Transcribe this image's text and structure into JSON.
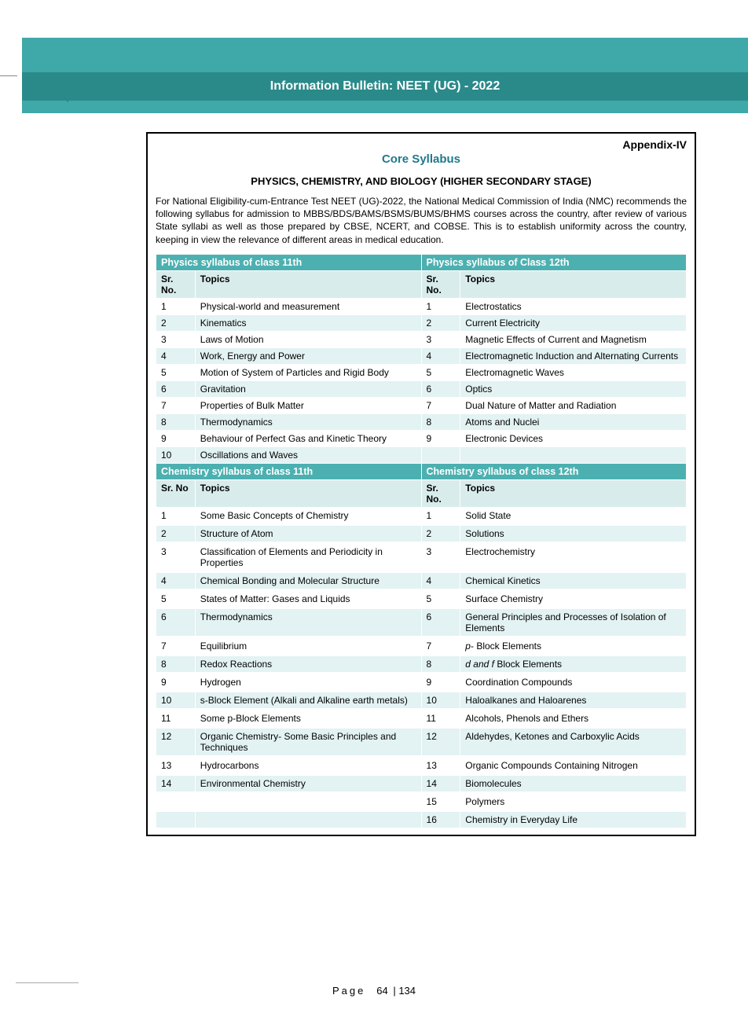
{
  "header": {
    "title": "Information Bulletin: NEET (UG) - 2022"
  },
  "appendix": "Appendix-IV",
  "core_title": "Core Syllabus",
  "subject_title": "PHYSICS, CHEMISTRY, AND BIOLOGY (HIGHER SECONDARY STAGE)",
  "intro": "For National Eligibility-cum-Entrance Test NEET (UG)-2022, the National Medical Commission of India (NMC) recommends the following syllabus for admission to MBBS/BDS/BAMS/BSMS/BUMS/BHMS courses across the country, after review of various State syllabi as well as those prepared by CBSE, NCERT, and COBSE. This is to establish uniformity across the country, keeping in view the relevance of different areas in medical education.",
  "physics": {
    "left_head": "Physics syllabus of class 11th",
    "right_head": "Physics syllabus of Class 12th",
    "cols": {
      "sr": "Sr. No.",
      "sr2": "Sr. No",
      "topics": "Topics"
    },
    "rows": [
      {
        "l": "Physical-world and measurement",
        "r": "Electrostatics"
      },
      {
        "l": "Kinematics",
        "r": "Current Electricity"
      },
      {
        "l": "Laws of Motion",
        "r": "Magnetic Effects of Current and Magnetism"
      },
      {
        "l": "Work, Energy and Power",
        "r": "Electromagnetic Induction and Alternating Currents"
      },
      {
        "l": "Motion of System of Particles and Rigid Body",
        "r": "Electromagnetic Waves"
      },
      {
        "l": "Gravitation",
        "r": "Optics"
      },
      {
        "l": "Properties of Bulk Matter",
        "r": "Dual Nature of Matter and Radiation"
      },
      {
        "l": "Thermodynamics",
        "r": "Atoms and Nuclei"
      },
      {
        "l": "Behaviour of Perfect Gas and Kinetic Theory",
        "r": "Electronic Devices"
      },
      {
        "l": "Oscillations and Waves",
        "r": ""
      }
    ]
  },
  "chemistry": {
    "left_head": "Chemistry syllabus of class 11th",
    "right_head": "Chemistry syllabus of class 12th",
    "rows": [
      {
        "l": "Some Basic Concepts of Chemistry",
        "r": "Solid State"
      },
      {
        "l": "Structure of Atom",
        "r": "Solutions"
      },
      {
        "l": "Classification of Elements and Periodicity in Properties",
        "r": "Electrochemistry"
      },
      {
        "l": "Chemical Bonding and Molecular Structure",
        "r": "Chemical Kinetics"
      },
      {
        "l": "States of Matter: Gases and Liquids",
        "r": "Surface Chemistry"
      },
      {
        "l": "Thermodynamics",
        "r": "General Principles and Processes of Isolation of Elements"
      },
      {
        "l": "Equilibrium",
        "r": "p- Block Elements",
        "r_ital": "p"
      },
      {
        "l": "Redox Reactions",
        "r": "d and f Block Elements",
        "r_ital": "d and f"
      },
      {
        "l": "Hydrogen",
        "r": "Coordination Compounds"
      },
      {
        "l": "s-Block Element (Alkali and Alkaline earth metals)",
        "r": "Haloalkanes and Haloarenes"
      },
      {
        "l": "Some p-Block Elements",
        "r": "Alcohols, Phenols and Ethers"
      },
      {
        "l": "Organic Chemistry- Some Basic Principles and Techniques",
        "r": "Aldehydes, Ketones and Carboxylic Acids"
      },
      {
        "l": "Hydrocarbons",
        "r": "Organic Compounds Containing Nitrogen"
      },
      {
        "l": "Environmental Chemistry",
        "r": "Biomolecules"
      },
      {
        "l": "",
        "r": "Polymers"
      },
      {
        "l": "",
        "r": "Chemistry in Everyday Life"
      }
    ]
  },
  "footer": {
    "label": "Page",
    "current": "64",
    "sep": "|",
    "total": "134"
  },
  "colors": {
    "header_band": "#3fa8a8",
    "header_inner": "#2a8a8a",
    "section_head": "#4db0b0",
    "col_head": "#d9ecec",
    "row_alt": "#e3f2f2",
    "title": "#1f7a8c"
  }
}
